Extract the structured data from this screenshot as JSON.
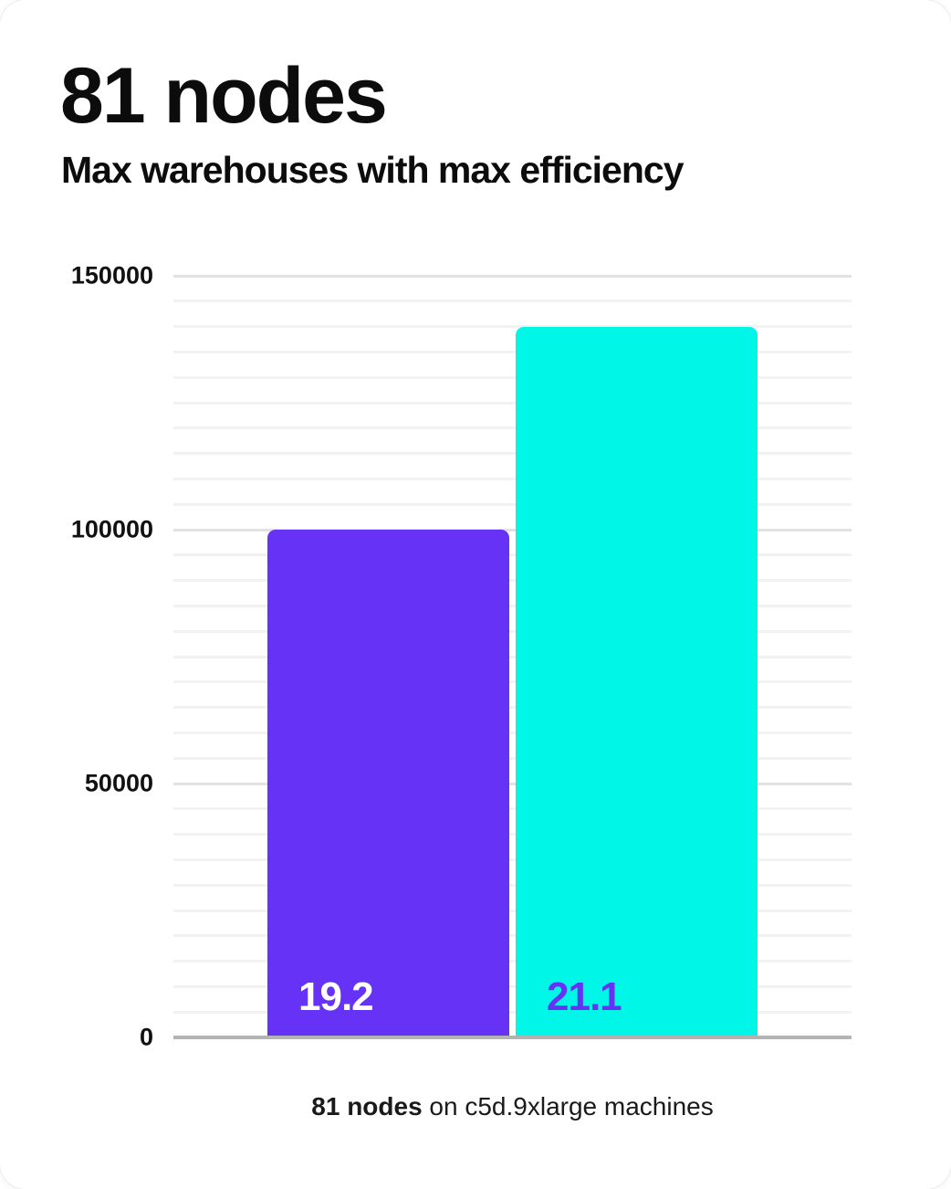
{
  "page": {
    "title": "81 nodes",
    "subtitle": "Max warehouses with max efficiency",
    "caption": {
      "bold": "81 nodes",
      "rest": " on c5d.9xlarge machines"
    }
  },
  "colors": {
    "background": "#ffffff",
    "text": "#0c0c0c",
    "bar_purple": "#6632f5",
    "bar_cyan": "#00f6e6",
    "label_on_purple": "#ffffff",
    "label_on_cyan": "#6632f5",
    "gridline_minor": "#f2f2f2",
    "gridline_major": "#e2e2e2",
    "axis_line": "#b3b3b3"
  },
  "chart_data": {
    "type": "bar",
    "title": "81 nodes",
    "subtitle": "Max warehouses with max efficiency",
    "categories": [
      "19.2",
      "21.1"
    ],
    "series": [
      {
        "name": "19.2",
        "value": 100000,
        "bar_color": "#6632f5",
        "label_color": "#ffffff"
      },
      {
        "name": "21.1",
        "value": 140000,
        "bar_color": "#00f6e6",
        "label_color": "#6632f5"
      }
    ],
    "xlabel": "",
    "ylabel": "",
    "ylim": [
      0,
      150000
    ],
    "yticks": [
      0,
      50000,
      100000,
      150000
    ],
    "ytick_labels": [
      "0",
      "50000",
      "100000",
      "150000"
    ],
    "minor_gridline_step": 5000,
    "grid": "horizontal",
    "legend_position": "none",
    "value_labels": "inside-bottom-left",
    "caption": "81 nodes on c5d.9xlarge machines"
  }
}
